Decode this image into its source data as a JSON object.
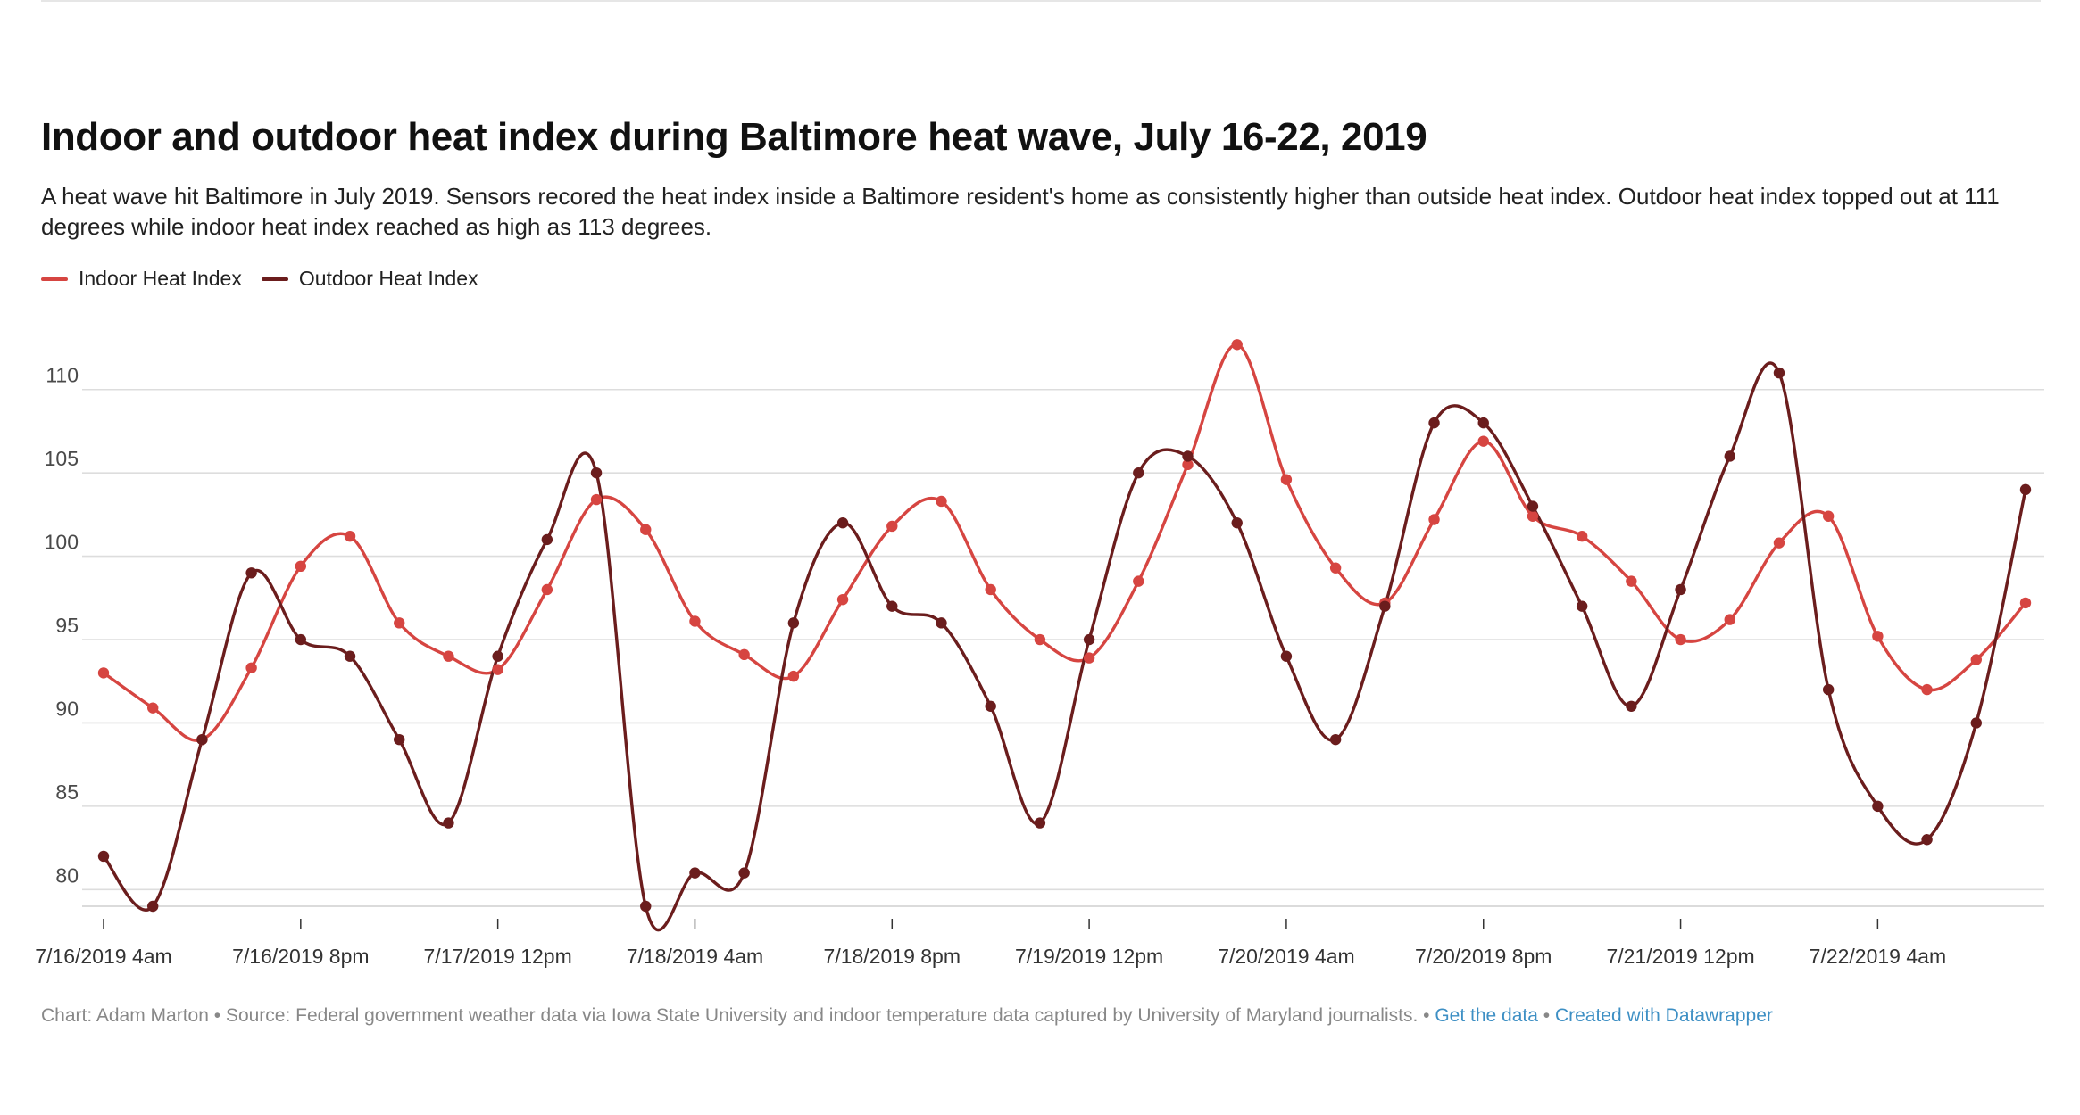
{
  "header": {
    "title": "Indoor and outdoor heat index during Baltimore heat wave, July 16-22, 2019",
    "subtitle": "A heat wave hit Baltimore in July 2019. Sensors recored the heat index inside a Baltimore resident's home as consistently higher than outside heat index. Outdoor heat index topped out at 111 degrees while indoor heat index reached as high as 113 degrees."
  },
  "footer": {
    "credit": "Chart: Adam Marton • Source: Federal government weather data via Iowa State University and indoor temperature data captured by University of Maryland journalists. • ",
    "get_data": "Get the data",
    "sep": " • ",
    "created_with": "Created with Datawrapper"
  },
  "colors": {
    "indoor": "#d64541",
    "outdoor": "#6b1d1d",
    "grid": "#dddddd",
    "axis": "#333333"
  },
  "chart_data": {
    "type": "line",
    "title": "Indoor and outdoor heat index during Baltimore heat wave, July 16-22, 2019",
    "xlabel": "",
    "ylabel": "",
    "x_start": "2019-07-16T04:00",
    "x_step_hours": 4,
    "ylim": [
      79,
      114
    ],
    "yticks": [
      80,
      85,
      90,
      95,
      100,
      105,
      110
    ],
    "xticks": [
      {
        "index": 0,
        "label": "7/16/2019 4am"
      },
      {
        "index": 4,
        "label": "7/16/2019 8pm"
      },
      {
        "index": 8,
        "label": "7/17/2019 12pm"
      },
      {
        "index": 12,
        "label": "7/18/2019 4am"
      },
      {
        "index": 16,
        "label": "7/18/2019 8pm"
      },
      {
        "index": 20,
        "label": "7/19/2019 12pm"
      },
      {
        "index": 24,
        "label": "7/20/2019 4am"
      },
      {
        "index": 28,
        "label": "7/20/2019 8pm"
      },
      {
        "index": 32,
        "label": "7/21/2019 12pm"
      },
      {
        "index": 36,
        "label": "7/22/2019 4am"
      }
    ],
    "grid": true,
    "legend": "top-left",
    "series": [
      {
        "name": "Indoor Heat Index",
        "color": "#d64541",
        "values": [
          93,
          90.9,
          89,
          93.3,
          99.4,
          101.2,
          96,
          94,
          93.2,
          98,
          103.4,
          101.6,
          96.1,
          94.1,
          92.8,
          97.4,
          101.8,
          103.3,
          98,
          95,
          93.9,
          98.5,
          105.5,
          112.7,
          104.6,
          99.3,
          97.2,
          102.2,
          106.9,
          102.4,
          101.2,
          98.5,
          95,
          96.2,
          100.8,
          102.4,
          95.2,
          92,
          93.8,
          97.2
        ]
      },
      {
        "name": "Outdoor Heat Index",
        "color": "#6b1d1d",
        "values": [
          82,
          79,
          89,
          99,
          95,
          94,
          89,
          84,
          94,
          101,
          105,
          79,
          81,
          81,
          96,
          102,
          97,
          96,
          91,
          84,
          95,
          105,
          106,
          102,
          94,
          89,
          97,
          108,
          108,
          103,
          97,
          91,
          98,
          106,
          111,
          92,
          85,
          83,
          90,
          104
        ]
      }
    ]
  }
}
